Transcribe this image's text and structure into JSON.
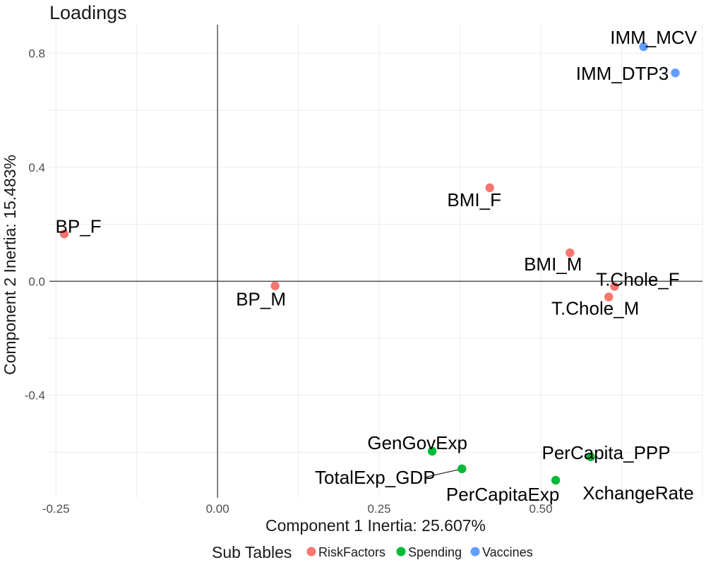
{
  "chart_data": {
    "type": "scatter",
    "title": "Loadings",
    "xlabel": "Component 1 Inertia: 25.607%",
    "ylabel": "Component 2 Inertia: 15.483%",
    "xlim": [
      -0.26,
      0.75
    ],
    "ylim": [
      -0.76,
      0.9
    ],
    "x_ticks": [
      -0.25,
      0.0,
      0.25,
      0.5
    ],
    "x_tick_labels": [
      "-0.25",
      "0.00",
      "0.25",
      "0.50"
    ],
    "y_ticks": [
      -0.4,
      0.0,
      0.4,
      0.8
    ],
    "y_tick_labels": [
      "-0.4",
      "0.0",
      "0.4",
      "0.8"
    ],
    "grid": true,
    "reference_lines": {
      "x": 0,
      "y": 0
    },
    "legend": {
      "title": "Sub Tables",
      "placement": "bottom",
      "entries": [
        {
          "name": "RiskFactors",
          "color": "#F8766D"
        },
        {
          "name": "Spending",
          "color": "#00BA38"
        },
        {
          "name": "Vaccines",
          "color": "#619CFF"
        }
      ]
    },
    "series": [
      {
        "name": "RiskFactors",
        "color": "#F8766D",
        "points": [
          {
            "label": "BP_F",
            "x": -0.237,
            "y": 0.166
          },
          {
            "label": "BP_M",
            "x": 0.089,
            "y": -0.016
          },
          {
            "label": "BMI_F",
            "x": 0.421,
            "y": 0.328
          },
          {
            "label": "BMI_M",
            "x": 0.545,
            "y": 0.1
          },
          {
            "label": "T.Chole_F",
            "x": 0.614,
            "y": -0.018
          },
          {
            "label": "T.Chole_M",
            "x": 0.605,
            "y": -0.055
          }
        ]
      },
      {
        "name": "Spending",
        "color": "#00BA38",
        "points": [
          {
            "label": "GenGovExp",
            "x": 0.332,
            "y": -0.596
          },
          {
            "label": "TotalExp_GDP",
            "x": 0.378,
            "y": -0.658
          },
          {
            "label": "PerCapitaExp",
            "x": 0.523,
            "y": -0.698
          },
          {
            "label": "PerCapita_PPP",
            "x": 0.577,
            "y": -0.616
          }
        ]
      },
      {
        "name": "Vaccines",
        "color": "#619CFF",
        "points": [
          {
            "label": "IMM_MCV",
            "x": 0.659,
            "y": 0.823
          },
          {
            "label": "IMM_DTP3",
            "x": 0.708,
            "y": 0.731
          }
        ]
      }
    ],
    "extra_labels": [
      "XchangeRate"
    ]
  }
}
